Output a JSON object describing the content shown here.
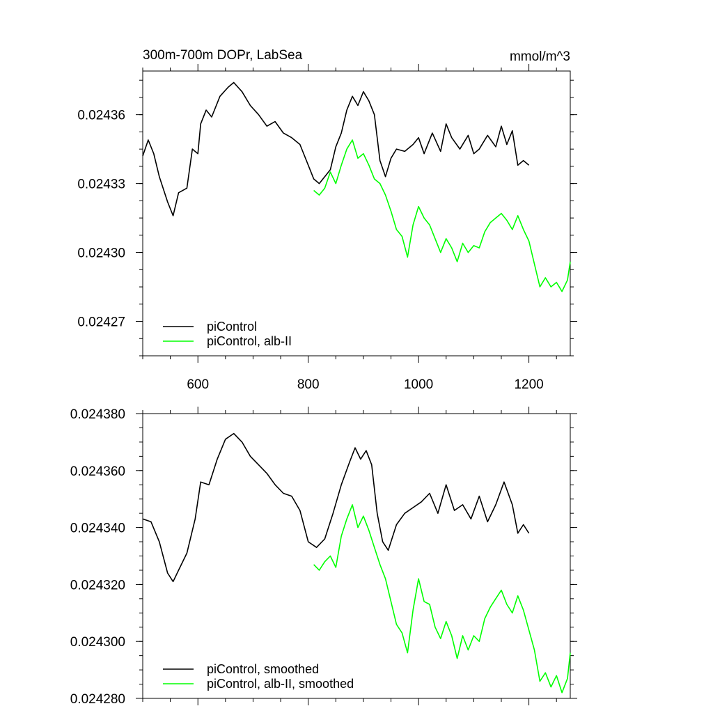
{
  "chart_data": [
    {
      "type": "line",
      "title": "300m-700m DOPr, LabSea",
      "units": "mmol/m^3",
      "xlim": [
        500,
        1275
      ],
      "ylim": [
        0.024255,
        0.024379
      ],
      "xticks": [
        600,
        800,
        1000,
        1200
      ],
      "x_tick_labels": [
        "600",
        "800",
        "1000",
        "1200"
      ],
      "yticks": [
        0.02427,
        0.0243,
        0.02433,
        0.02436
      ],
      "y_tick_labels": [
        "0.02427",
        "0.02430",
        "0.02433",
        "0.02436"
      ],
      "legend_position": "bottom-left",
      "series": [
        {
          "name": "piControl",
          "color": "#000000",
          "x": [
            500,
            510,
            520,
            530,
            545,
            555,
            565,
            580,
            590,
            600,
            605,
            615,
            625,
            640,
            655,
            665,
            680,
            695,
            710,
            725,
            740,
            755,
            770,
            785,
            800,
            810,
            820,
            830,
            840,
            850,
            860,
            870,
            880,
            890,
            900,
            910,
            920,
            930,
            940,
            950,
            960,
            975,
            990,
            1000,
            1010,
            1025,
            1040,
            1050,
            1060,
            1075,
            1090,
            1100,
            1110,
            1125,
            1140,
            1150,
            1160,
            1170,
            1180,
            1190,
            1200
          ],
          "values": [
            0.024342,
            0.024349,
            0.024343,
            0.024333,
            0.024322,
            0.024316,
            0.024326,
            0.024328,
            0.024345,
            0.024343,
            0.024356,
            0.024362,
            0.024359,
            0.024368,
            0.024372,
            0.024374,
            0.02437,
            0.024364,
            0.02436,
            0.024355,
            0.024357,
            0.024352,
            0.02435,
            0.024347,
            0.024338,
            0.024332,
            0.02433,
            0.024333,
            0.024336,
            0.024346,
            0.024352,
            0.024362,
            0.024368,
            0.024364,
            0.02437,
            0.024366,
            0.02436,
            0.02434,
            0.024333,
            0.024341,
            0.024345,
            0.024344,
            0.024347,
            0.02435,
            0.024343,
            0.024352,
            0.024344,
            0.024356,
            0.02435,
            0.024345,
            0.024351,
            0.024343,
            0.024345,
            0.024351,
            0.024346,
            0.024355,
            0.024347,
            0.024353,
            0.024338,
            0.02434,
            0.024338
          ]
        },
        {
          "name": "piControl, alb-II",
          "color": "#00ff00",
          "x": [
            810,
            820,
            830,
            840,
            850,
            860,
            870,
            880,
            890,
            900,
            910,
            920,
            930,
            940,
            950,
            960,
            970,
            980,
            990,
            1000,
            1010,
            1020,
            1030,
            1040,
            1050,
            1060,
            1070,
            1080,
            1090,
            1100,
            1110,
            1120,
            1130,
            1140,
            1150,
            1160,
            1170,
            1180,
            1190,
            1200,
            1210,
            1220,
            1230,
            1240,
            1250,
            1260,
            1270,
            1275
          ],
          "values": [
            0.024327,
            0.024325,
            0.024328,
            0.024335,
            0.02433,
            0.024338,
            0.024345,
            0.024349,
            0.024341,
            0.024343,
            0.024338,
            0.024332,
            0.02433,
            0.024325,
            0.024318,
            0.02431,
            0.024307,
            0.024298,
            0.024312,
            0.02432,
            0.024315,
            0.024312,
            0.024306,
            0.0243,
            0.024306,
            0.024302,
            0.024296,
            0.024304,
            0.0243,
            0.024303,
            0.024302,
            0.024309,
            0.024313,
            0.024315,
            0.024317,
            0.024314,
            0.02431,
            0.024316,
            0.02431,
            0.024305,
            0.024295,
            0.024285,
            0.024289,
            0.024285,
            0.024287,
            0.024283,
            0.024288,
            0.024296
          ]
        }
      ]
    },
    {
      "type": "line",
      "title": "",
      "xlim": [
        500,
        1275
      ],
      "ylim": [
        0.02428,
        0.02438
      ],
      "xticks": [
        600,
        800,
        1000,
        1200
      ],
      "x_tick_labels": [],
      "yticks": [
        0.02428,
        0.0243,
        0.02432,
        0.02434,
        0.02436,
        0.02438
      ],
      "y_tick_labels": [
        "0.024280",
        "0.024300",
        "0.024320",
        "0.024340",
        "0.024360",
        "0.024380"
      ],
      "legend_position": "bottom-left",
      "series": [
        {
          "name": "piControl, smoothed",
          "color": "#000000",
          "x": [
            500,
            515,
            530,
            545,
            555,
            565,
            580,
            595,
            605,
            620,
            635,
            650,
            665,
            680,
            695,
            710,
            725,
            740,
            755,
            770,
            785,
            800,
            815,
            830,
            845,
            860,
            875,
            885,
            895,
            905,
            915,
            925,
            935,
            945,
            960,
            975,
            990,
            1005,
            1020,
            1035,
            1050,
            1065,
            1080,
            1095,
            1110,
            1125,
            1140,
            1155,
            1170,
            1180,
            1190,
            1200
          ],
          "values": [
            0.024343,
            0.024342,
            0.024335,
            0.024324,
            0.024321,
            0.024325,
            0.024331,
            0.024343,
            0.024356,
            0.024355,
            0.024364,
            0.024371,
            0.024373,
            0.02437,
            0.024365,
            0.024362,
            0.024359,
            0.024355,
            0.024352,
            0.024351,
            0.024346,
            0.024335,
            0.024333,
            0.024336,
            0.024345,
            0.024355,
            0.024363,
            0.024368,
            0.024364,
            0.024367,
            0.024362,
            0.024345,
            0.024335,
            0.024332,
            0.024341,
            0.024345,
            0.024347,
            0.024349,
            0.024352,
            0.024345,
            0.024355,
            0.024346,
            0.024348,
            0.024343,
            0.024351,
            0.024342,
            0.024348,
            0.024356,
            0.024348,
            0.024338,
            0.024341,
            0.024338
          ]
        },
        {
          "name": "piControl, alb-II, smoothed",
          "color": "#00ff00",
          "x": [
            810,
            820,
            830,
            840,
            850,
            860,
            870,
            880,
            890,
            900,
            910,
            920,
            930,
            940,
            950,
            960,
            970,
            980,
            990,
            1000,
            1010,
            1020,
            1030,
            1040,
            1050,
            1060,
            1070,
            1080,
            1090,
            1100,
            1110,
            1120,
            1130,
            1140,
            1150,
            1160,
            1170,
            1180,
            1190,
            1200,
            1210,
            1220,
            1230,
            1240,
            1250,
            1260,
            1270,
            1275
          ],
          "values": [
            0.024327,
            0.024325,
            0.024328,
            0.02433,
            0.024326,
            0.024337,
            0.024343,
            0.024348,
            0.02434,
            0.024344,
            0.024339,
            0.024333,
            0.024327,
            0.024322,
            0.024314,
            0.024306,
            0.024303,
            0.024296,
            0.024311,
            0.024322,
            0.024314,
            0.024313,
            0.024305,
            0.024301,
            0.024307,
            0.024302,
            0.024294,
            0.024302,
            0.024297,
            0.024302,
            0.0243,
            0.024308,
            0.024312,
            0.024315,
            0.024318,
            0.024313,
            0.02431,
            0.024316,
            0.024311,
            0.024304,
            0.024297,
            0.024286,
            0.024289,
            0.024284,
            0.024288,
            0.024282,
            0.024287,
            0.024296
          ]
        }
      ]
    }
  ]
}
